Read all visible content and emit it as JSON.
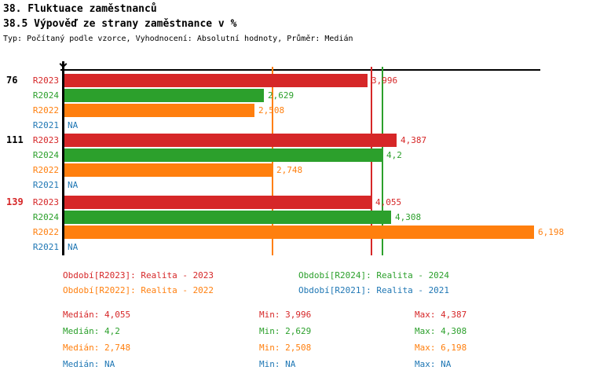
{
  "header": {
    "title_line1": "38. Fluktuace zaměstnanců",
    "title_line2": "38.5 Výpověď ze strany zaměstnance v %",
    "subtitle": "Typ: Počítaný podle vzorce, Vyhodnocení: Absolutní hodnoty, Průměr: Medián"
  },
  "colors": {
    "R2023": "#d62728",
    "R2024": "#2ca02c",
    "R2022": "#ff7f0e",
    "R2021": "#1f77b4",
    "axis": "#000000",
    "highlight_group": "#d62728"
  },
  "chart_data": {
    "type": "bar",
    "orientation": "horizontal",
    "xlim": [
      0,
      6.3
    ],
    "grid": false,
    "series_order": [
      "R2023",
      "R2024",
      "R2022",
      "R2021"
    ],
    "groups": [
      {
        "label": "76",
        "label_color": "#000000",
        "rows": [
          {
            "series": "R2023",
            "value": 3.996,
            "display": "3,996"
          },
          {
            "series": "R2024",
            "value": 2.629,
            "display": "2,629"
          },
          {
            "series": "R2022",
            "value": 2.508,
            "display": "2,508"
          },
          {
            "series": "R2021",
            "value": null,
            "display": "NA"
          }
        ]
      },
      {
        "label": "111",
        "label_color": "#000000",
        "rows": [
          {
            "series": "R2023",
            "value": 4.387,
            "display": "4,387"
          },
          {
            "series": "R2024",
            "value": 4.2,
            "display": "4,2"
          },
          {
            "series": "R2022",
            "value": 2.748,
            "display": "2,748"
          },
          {
            "series": "R2021",
            "value": null,
            "display": "NA"
          }
        ]
      },
      {
        "label": "139",
        "label_color": "#d62728",
        "rows": [
          {
            "series": "R2023",
            "value": 4.055,
            "display": "4,055"
          },
          {
            "series": "R2024",
            "value": 4.308,
            "display": "4,308"
          },
          {
            "series": "R2022",
            "value": 6.198,
            "display": "6,198"
          },
          {
            "series": "R2021",
            "value": null,
            "display": "NA"
          }
        ]
      }
    ],
    "median_lines": [
      {
        "series": "R2022",
        "value": 2.748
      },
      {
        "series": "R2023",
        "value": 4.055
      },
      {
        "series": "R2024",
        "value": 4.2
      }
    ]
  },
  "legend": [
    {
      "label": "Období[R2023]: Realita - 2023",
      "series": "R2023",
      "col": 0,
      "row": 0
    },
    {
      "label": "Období[R2024]: Realita - 2024",
      "series": "R2024",
      "col": 1,
      "row": 0
    },
    {
      "label": "Období[R2022]: Realita - 2022",
      "series": "R2022",
      "col": 0,
      "row": 1
    },
    {
      "label": "Období[R2021]: Realita - 2021",
      "series": "R2021",
      "col": 1,
      "row": 1
    }
  ],
  "stats_labels": {
    "median": "Medián",
    "min": "Min",
    "max": "Max"
  },
  "stats": [
    {
      "series": "R2023",
      "median": "4,055",
      "min": "3,996",
      "max": "4,387"
    },
    {
      "series": "R2024",
      "median": "4,2",
      "min": "2,629",
      "max": "4,308"
    },
    {
      "series": "R2022",
      "median": "2,748",
      "min": "2,508",
      "max": "6,198"
    },
    {
      "series": "R2021",
      "median": "NA",
      "min": "NA",
      "max": "NA"
    }
  ]
}
